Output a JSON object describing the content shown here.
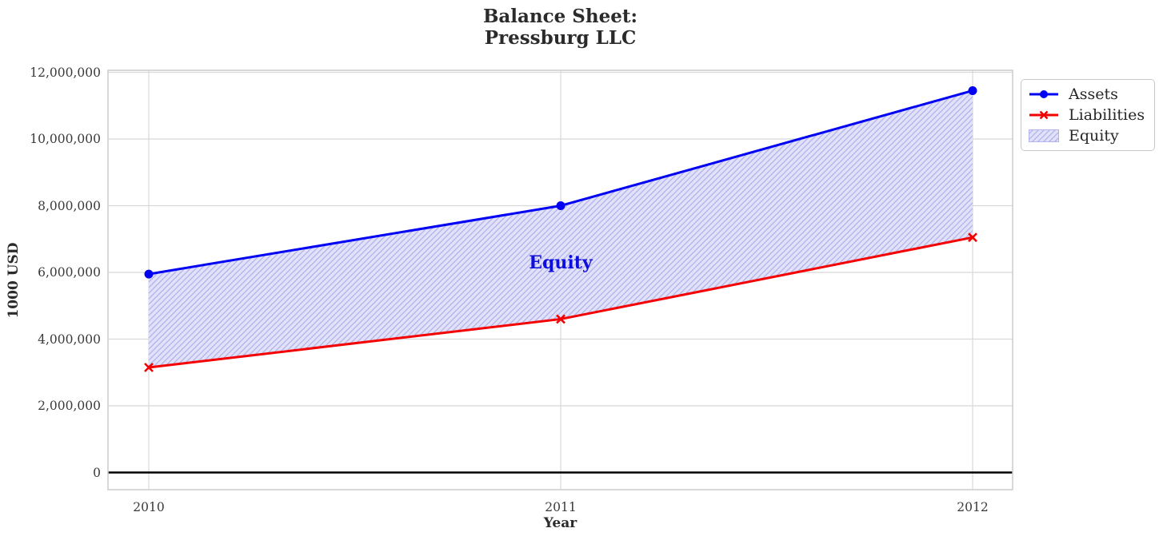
{
  "chart_data": {
    "type": "area",
    "title_lines": [
      "Balance Sheet:",
      "Pressburg LLC"
    ],
    "xlabel": "Year",
    "ylabel": "1000 USD",
    "categories": [
      "2010",
      "2011",
      "2012"
    ],
    "series": [
      {
        "name": "Assets",
        "marker": "circle",
        "values": [
          5950000,
          8000000,
          11450000
        ]
      },
      {
        "name": "Liabilities",
        "marker": "x",
        "values": [
          3150000,
          4600000,
          7050000
        ]
      }
    ],
    "area": {
      "name": "Equity",
      "between": [
        "Assets",
        "Liabilities"
      ],
      "values": [
        2800000,
        3400000,
        4400000
      ],
      "hatch": "//"
    },
    "annotation": {
      "text": "Equity",
      "x": "2011",
      "y": 6310000
    },
    "y_ticks": [
      0,
      2000000,
      4000000,
      6000000,
      8000000,
      10000000,
      12000000
    ],
    "y_tick_labels": [
      "0",
      "2,000,000",
      "4,000,000",
      "6,000,000",
      "8,000,000",
      "10,000,000",
      "12,000,000"
    ],
    "ylim": [
      0,
      12000000
    ],
    "grid": true,
    "zero_line": true,
    "legend": {
      "position": "upper-right-outside",
      "entries": [
        "Assets",
        "Liabilities",
        "Equity"
      ]
    },
    "colors": {
      "assets": "#0000f5",
      "liabilities": "#f50000",
      "equity_fill": "#e1e1f8",
      "equity_hatch": "#b2b2ee",
      "annotation": "#0f0fdd",
      "grid": "#d8d8d8",
      "border": "#cccccc",
      "zero_line": "#000000",
      "tick_text": "#3a3a3a"
    }
  }
}
